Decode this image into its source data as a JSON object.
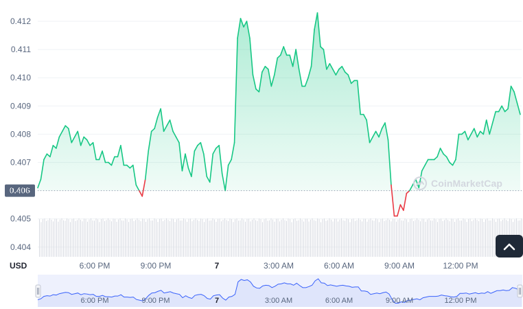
{
  "chart_data": {
    "type": "area",
    "currency_label": "USD",
    "ylim": [
      0.4035,
      0.4123
    ],
    "y_ticks": [
      "0.412",
      "0.411",
      "0.410",
      "0.409",
      "0.408",
      "0.407",
      "0.406",
      "0.405",
      "0.404"
    ],
    "reference_price": 0.406,
    "reference_label": "0.406",
    "x_ticks": [
      {
        "label": "6:00 PM",
        "bold": false
      },
      {
        "label": "9:00 PM",
        "bold": false
      },
      {
        "label": "7",
        "bold": true
      },
      {
        "label": "3:00 AM",
        "bold": false
      },
      {
        "label": "6:00 AM",
        "bold": false
      },
      {
        "label": "9:00 AM",
        "bold": false
      },
      {
        "label": "12:00 PM",
        "bold": false
      }
    ],
    "series": [
      {
        "values": [
          0.4061,
          0.4064,
          0.4071,
          0.4073,
          0.4072,
          0.4076,
          0.4075,
          0.4079,
          0.4081,
          0.4083,
          0.4082,
          0.4077,
          0.4079,
          0.4081,
          0.4076,
          0.4079,
          0.4078,
          0.4076,
          0.4077,
          0.4071,
          0.4071,
          0.4074,
          0.407,
          0.407,
          0.4069,
          0.4072,
          0.4072,
          0.4076,
          0.4069,
          0.4069,
          0.4068,
          0.4069,
          0.4062,
          0.406,
          0.4058,
          0.4064,
          0.4074,
          0.4081,
          0.4082,
          0.4086,
          0.4089,
          0.4081,
          0.4083,
          0.4085,
          0.4081,
          0.4079,
          0.4077,
          0.4067,
          0.4073,
          0.4068,
          0.4065,
          0.4074,
          0.4076,
          0.4077,
          0.4073,
          0.4065,
          0.4063,
          0.4073,
          0.4075,
          0.4076,
          0.4066,
          0.406,
          0.4069,
          0.4071,
          0.4077,
          0.4114,
          0.4121,
          0.4118,
          0.412,
          0.4114,
          0.4101,
          0.4096,
          0.4095,
          0.4102,
          0.4104,
          0.4103,
          0.4097,
          0.4101,
          0.4107,
          0.4108,
          0.4111,
          0.4108,
          0.4108,
          0.4104,
          0.411,
          0.4103,
          0.4097,
          0.4097,
          0.41,
          0.4104,
          0.4117,
          0.4123,
          0.4111,
          0.411,
          0.4103,
          0.4105,
          0.4103,
          0.4101,
          0.4103,
          0.4104,
          0.4102,
          0.4101,
          0.4098,
          0.4099,
          0.4099,
          0.4087,
          0.4087,
          0.4085,
          0.4077,
          0.4079,
          0.4081,
          0.4079,
          0.4082,
          0.4084,
          0.4078,
          0.4062,
          0.4051,
          0.4051,
          0.4055,
          0.4053,
          0.4059,
          0.406,
          0.4062,
          0.4064,
          0.4061,
          0.4067,
          0.4069,
          0.4071,
          0.4071,
          0.4071,
          0.4072,
          0.4075,
          0.4073,
          0.4072,
          0.407,
          0.4069,
          0.4071,
          0.408,
          0.408,
          0.4081,
          0.4078,
          0.408,
          0.4082,
          0.4079,
          0.4081,
          0.408,
          0.4085,
          0.408,
          0.4084,
          0.4088,
          0.4088,
          0.409,
          0.4088,
          0.4089,
          0.4097,
          0.4095,
          0.4091,
          0.4087
        ]
      }
    ],
    "colors": {
      "up": "#16c784",
      "down": "#ea3943",
      "grid": "#eff2f5",
      "axis_text": "#58667e",
      "navigator_line": "#3861fb",
      "navigator_fill": "#dfe5fb"
    },
    "grid": true,
    "volume_bars": true,
    "navigator": true,
    "watermark_text": "CoinMarketCap"
  },
  "ui": {
    "scroll_top_icon": "chevron-up-icon"
  }
}
